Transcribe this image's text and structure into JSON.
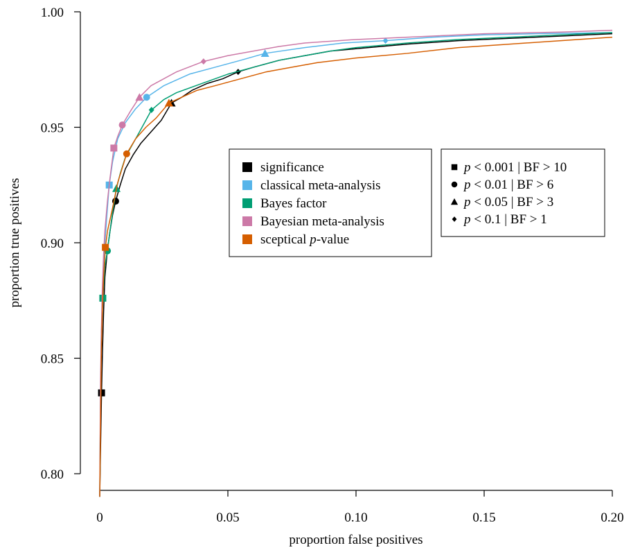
{
  "chart_data": {
    "type": "line",
    "title": "",
    "xlabel": "proportion false positives",
    "ylabel": "proportion true positives",
    "xlim": [
      0,
      0.2
    ],
    "ylim": [
      0.79,
      1.0
    ],
    "x_ticks": [
      {
        "value": 0,
        "label": "0"
      },
      {
        "value": 0.05,
        "label": "0.05"
      },
      {
        "value": 0.1,
        "label": "0.10"
      },
      {
        "value": 0.15,
        "label": "0.15"
      },
      {
        "value": 0.2,
        "label": "0.20"
      }
    ],
    "y_ticks": [
      {
        "value": 0.8,
        "label": "0.80"
      },
      {
        "value": 0.85,
        "label": "0.85"
      },
      {
        "value": 0.9,
        "label": "0.90"
      },
      {
        "value": 0.95,
        "label": "0.95"
      },
      {
        "value": 1.0,
        "label": "1.00"
      }
    ],
    "grid": false,
    "legend_methods_position": "center",
    "legend_thresholds_position": "center-right",
    "series": [
      {
        "name": "significance",
        "color": "#000000",
        "points": [
          [
            0,
            0.79
          ],
          [
            0.0003,
            0.81
          ],
          [
            0.0007,
            0.835
          ],
          [
            0.001,
            0.85
          ],
          [
            0.0015,
            0.87
          ],
          [
            0.002,
            0.885
          ],
          [
            0.003,
            0.897
          ],
          [
            0.004,
            0.905
          ],
          [
            0.005,
            0.912
          ],
          [
            0.0062,
            0.918
          ],
          [
            0.008,
            0.925
          ],
          [
            0.01,
            0.932
          ],
          [
            0.013,
            0.938
          ],
          [
            0.016,
            0.943
          ],
          [
            0.02,
            0.948
          ],
          [
            0.024,
            0.953
          ],
          [
            0.028,
            0.9605
          ],
          [
            0.032,
            0.963
          ],
          [
            0.036,
            0.966
          ],
          [
            0.042,
            0.969
          ],
          [
            0.048,
            0.971
          ],
          [
            0.054,
            0.974
          ],
          [
            0.06,
            0.976
          ],
          [
            0.07,
            0.979
          ],
          [
            0.08,
            0.981
          ],
          [
            0.09,
            0.983
          ],
          [
            0.1,
            0.984
          ],
          [
            0.12,
            0.986
          ],
          [
            0.14,
            0.9875
          ],
          [
            0.16,
            0.9885
          ],
          [
            0.18,
            0.9895
          ],
          [
            0.2,
            0.9905
          ]
        ],
        "markers": [
          [
            0.0007,
            0.835
          ],
          [
            0.0062,
            0.918
          ],
          [
            0.028,
            0.9605
          ],
          [
            0.054,
            0.974
          ]
        ]
      },
      {
        "name": "classical meta-analysis",
        "color": "#56B4E9",
        "points": [
          [
            0,
            0.79
          ],
          [
            0.0003,
            0.83
          ],
          [
            0.0006,
            0.85
          ],
          [
            0.001,
            0.87
          ],
          [
            0.0015,
            0.888
          ],
          [
            0.002,
            0.9
          ],
          [
            0.003,
            0.915
          ],
          [
            0.0037,
            0.925
          ],
          [
            0.005,
            0.935
          ],
          [
            0.007,
            0.945
          ],
          [
            0.01,
            0.952
          ],
          [
            0.014,
            0.958
          ],
          [
            0.0183,
            0.963
          ],
          [
            0.025,
            0.968
          ],
          [
            0.035,
            0.973
          ],
          [
            0.045,
            0.976
          ],
          [
            0.055,
            0.979
          ],
          [
            0.0645,
            0.982
          ],
          [
            0.08,
            0.9845
          ],
          [
            0.095,
            0.9865
          ],
          [
            0.1115,
            0.9875
          ],
          [
            0.13,
            0.989
          ],
          [
            0.15,
            0.99
          ],
          [
            0.17,
            0.9905
          ],
          [
            0.2,
            0.991
          ]
        ],
        "markers": [
          [
            0.0037,
            0.925
          ],
          [
            0.0183,
            0.963
          ],
          [
            0.0645,
            0.982
          ],
          [
            0.1115,
            0.9875
          ]
        ]
      },
      {
        "name": "Bayes factor",
        "color": "#009E73",
        "points": [
          [
            0,
            0.79
          ],
          [
            0.0003,
            0.83
          ],
          [
            0.0006,
            0.86
          ],
          [
            0.0012,
            0.876
          ],
          [
            0.002,
            0.89
          ],
          [
            0.003,
            0.8965
          ],
          [
            0.004,
            0.905
          ],
          [
            0.005,
            0.913
          ],
          [
            0.0065,
            0.9235
          ],
          [
            0.008,
            0.93
          ],
          [
            0.01,
            0.937
          ],
          [
            0.013,
            0.943
          ],
          [
            0.016,
            0.949
          ],
          [
            0.0202,
            0.9575
          ],
          [
            0.025,
            0.962
          ],
          [
            0.03,
            0.965
          ],
          [
            0.04,
            0.969
          ],
          [
            0.05,
            0.973
          ],
          [
            0.06,
            0.976
          ],
          [
            0.07,
            0.979
          ],
          [
            0.08,
            0.981
          ],
          [
            0.09,
            0.983
          ],
          [
            0.1,
            0.9845
          ],
          [
            0.12,
            0.9865
          ],
          [
            0.14,
            0.988
          ],
          [
            0.16,
            0.989
          ],
          [
            0.18,
            0.99
          ],
          [
            0.2,
            0.991
          ]
        ],
        "markers": [
          [
            0.0012,
            0.876
          ],
          [
            0.003,
            0.8965
          ],
          [
            0.0065,
            0.9235
          ],
          [
            0.0202,
            0.9575
          ]
        ]
      },
      {
        "name": "Bayesian meta-analysis",
        "color": "#CC79A7",
        "points": [
          [
            0,
            0.79
          ],
          [
            0.0003,
            0.84
          ],
          [
            0.0006,
            0.86
          ],
          [
            0.001,
            0.88
          ],
          [
            0.0015,
            0.895
          ],
          [
            0.002,
            0.905
          ],
          [
            0.003,
            0.918
          ],
          [
            0.004,
            0.928
          ],
          [
            0.0055,
            0.941
          ],
          [
            0.007,
            0.946
          ],
          [
            0.0088,
            0.951
          ],
          [
            0.012,
            0.957
          ],
          [
            0.0155,
            0.963
          ],
          [
            0.02,
            0.968
          ],
          [
            0.03,
            0.974
          ],
          [
            0.0405,
            0.9785
          ],
          [
            0.05,
            0.981
          ],
          [
            0.06,
            0.983
          ],
          [
            0.07,
            0.985
          ],
          [
            0.08,
            0.9865
          ],
          [
            0.1,
            0.988
          ],
          [
            0.12,
            0.989
          ],
          [
            0.15,
            0.9905
          ],
          [
            0.18,
            0.9912
          ],
          [
            0.2,
            0.992
          ]
        ],
        "markers": [
          [
            0.0055,
            0.941
          ],
          [
            0.0088,
            0.951
          ],
          [
            0.0155,
            0.963
          ],
          [
            0.0405,
            0.9785
          ]
        ]
      },
      {
        "name": "sceptical p-value",
        "color": "#D55E00",
        "points": [
          [
            0,
            0.79
          ],
          [
            0.0003,
            0.82
          ],
          [
            0.0006,
            0.85
          ],
          [
            0.001,
            0.87
          ],
          [
            0.0015,
            0.885
          ],
          [
            0.0022,
            0.898
          ],
          [
            0.003,
            0.905
          ],
          [
            0.005,
            0.915
          ],
          [
            0.007,
            0.926
          ],
          [
            0.0105,
            0.9385
          ],
          [
            0.014,
            0.945
          ],
          [
            0.018,
            0.95
          ],
          [
            0.022,
            0.954
          ],
          [
            0.027,
            0.9605
          ],
          [
            0.032,
            0.963
          ],
          [
            0.038,
            0.966
          ],
          [
            0.045,
            0.968
          ],
          [
            0.055,
            0.971
          ],
          [
            0.065,
            0.974
          ],
          [
            0.075,
            0.976
          ],
          [
            0.085,
            0.978
          ],
          [
            0.1,
            0.98
          ],
          [
            0.12,
            0.982
          ],
          [
            0.14,
            0.9845
          ],
          [
            0.16,
            0.986
          ],
          [
            0.18,
            0.9875
          ],
          [
            0.2,
            0.989
          ]
        ],
        "markers": [
          [
            0.0022,
            0.898
          ],
          [
            0.0105,
            0.9385
          ],
          [
            0.027,
            0.9605
          ]
        ]
      }
    ],
    "legend_methods": [
      {
        "label": "significance",
        "color": "#000000"
      },
      {
        "label_pre": "classical meta-analysis",
        "label_italic": "",
        "label_post": "",
        "color": "#56B4E9"
      },
      {
        "label_pre": "Bayes factor",
        "label_italic": "",
        "label_post": "",
        "color": "#009E73"
      },
      {
        "label_pre": "Bayesian meta-analysis",
        "label_italic": "",
        "label_post": "",
        "color": "#CC79A7"
      },
      {
        "label_pre": "sceptical ",
        "label_italic": "p",
        "label_post": "-value",
        "color": "#D55E00"
      }
    ],
    "legend_thresholds": [
      {
        "marker": "square",
        "italic": "p",
        "rest": " < 0.001 | BF > 10"
      },
      {
        "marker": "circle",
        "italic": "p",
        "rest": " < 0.01 | BF > 6"
      },
      {
        "marker": "triangle",
        "italic": "p",
        "rest": " < 0.05 | BF > 3"
      },
      {
        "marker": "diamond",
        "italic": "p",
        "rest": " < 0.1 | BF > 1"
      }
    ],
    "marker_order": [
      "square",
      "circle",
      "triangle",
      "diamond"
    ]
  }
}
